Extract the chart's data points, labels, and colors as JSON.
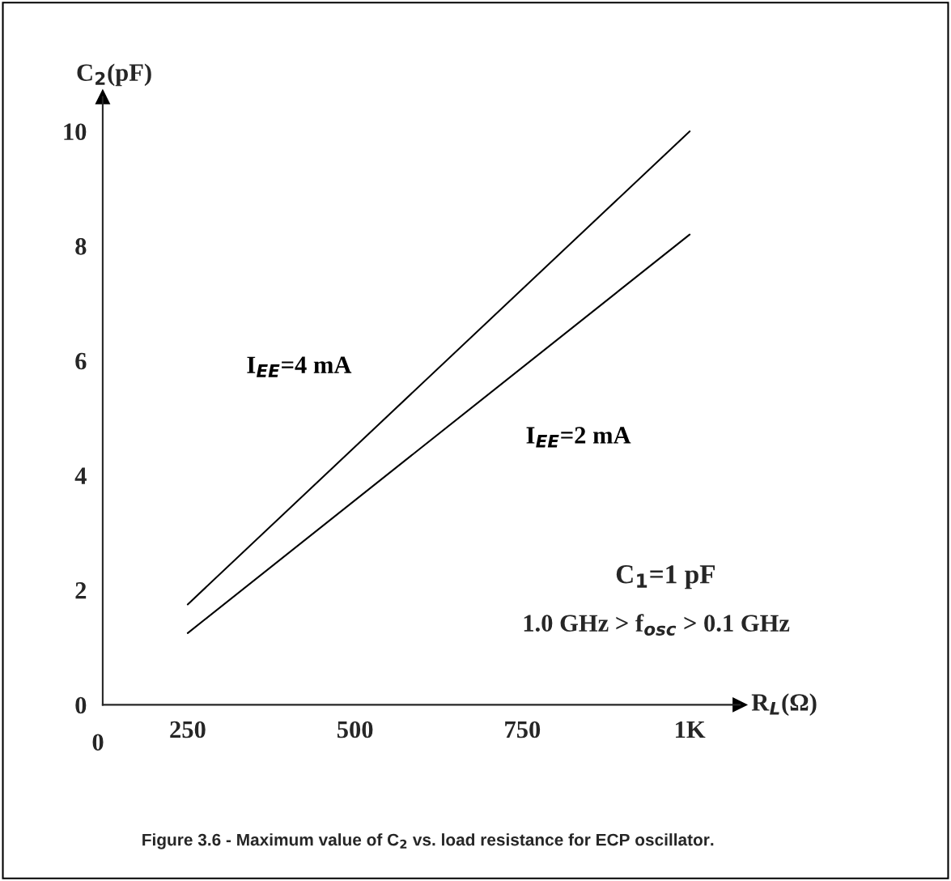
{
  "chart_data": {
    "type": "line",
    "xlabel": "R$_{L}$(Ω)",
    "ylabel": "C$_{2}$(pF)",
    "x": [
      250,
      1000
    ],
    "series": [
      {
        "name": "I$_{EE}$=4 mA",
        "color": "#000000",
        "values": [
          1.75,
          10.0
        ]
      },
      {
        "name": "I$_{EE}$=2 mA",
        "color": "#000000",
        "values": [
          1.25,
          8.2
        ]
      }
    ],
    "xlim": [
      123,
      1075
    ],
    "ylim": [
      0,
      10.6
    ],
    "xticks": [
      250,
      500,
      750,
      {
        "value": 1000,
        "label": "1K"
      }
    ],
    "yticks": [
      0,
      2,
      4,
      6,
      8,
      10
    ],
    "grid": false,
    "legend": false,
    "line_style": "solid",
    "marker": "none",
    "annotations": [
      "C$_{1}$=1 pF",
      "1.0 GHz > f$_{osc}$ > 0.1 GHz",
      "0",
      "Figure 3.6 - Maximum value of C$_{2}$ vs. load resistance for ECP oscillator."
    ]
  }
}
